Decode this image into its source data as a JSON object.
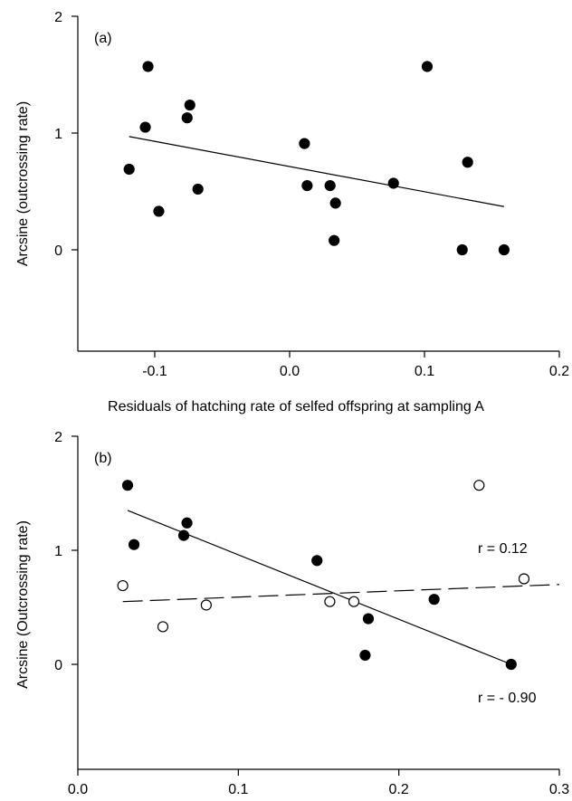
{
  "chart_data": [
    {
      "type": "scatter",
      "panel_label": "(a)",
      "xlabel": "Residuals of hatching rate of selfed offspring at sampling A",
      "ylabel": "Arcsine (outcrossing rate)",
      "xlim": [
        -0.15,
        0.2
      ],
      "ylim": [
        -0.9,
        2
      ],
      "xticks": [
        "-0.1",
        "0.0",
        "0.1",
        "0.2"
      ],
      "xtick_values": [
        -0.1,
        0.0,
        0.1,
        0.2
      ],
      "yticks": [
        "0",
        "1",
        "2"
      ],
      "ytick_values": [
        0,
        1,
        2
      ],
      "grid": false,
      "series": [
        {
          "marker": "filled",
          "points": [
            [
              -0.119,
              0.69
            ],
            [
              -0.105,
              1.57
            ],
            [
              -0.107,
              1.05
            ],
            [
              -0.097,
              0.33
            ],
            [
              -0.076,
              1.13
            ],
            [
              -0.074,
              1.24
            ],
            [
              -0.068,
              0.52
            ],
            [
              0.011,
              0.91
            ],
            [
              0.013,
              0.55
            ],
            [
              0.03,
              0.55
            ],
            [
              0.034,
              0.4
            ],
            [
              0.033,
              0.08
            ],
            [
              0.077,
              0.57
            ],
            [
              0.102,
              1.57
            ],
            [
              0.128,
              0.0
            ],
            [
              0.132,
              0.75
            ],
            [
              0.159,
              0.0
            ]
          ]
        }
      ],
      "fit_lines": [
        {
          "style": "solid",
          "x": [
            -0.119,
            0.159
          ],
          "y": [
            0.97,
            0.37
          ]
        }
      ]
    },
    {
      "type": "scatter",
      "panel_label": "(b)",
      "xlabel": "",
      "ylabel": "Arcsine (Outcrossing rate)",
      "xlim": [
        0.0,
        0.3
      ],
      "ylim": [
        -0.9,
        2
      ],
      "xticks": [
        "0.0",
        "0.1",
        "0.2",
        "0.3"
      ],
      "xtick_values": [
        0.0,
        0.1,
        0.2,
        0.3
      ],
      "yticks": [
        "0",
        "1",
        "2"
      ],
      "ytick_values": [
        0,
        1,
        2
      ],
      "grid": false,
      "series": [
        {
          "marker": "filled",
          "points": [
            [
              0.031,
              1.57
            ],
            [
              0.035,
              1.05
            ],
            [
              0.066,
              1.13
            ],
            [
              0.068,
              1.24
            ],
            [
              0.149,
              0.91
            ],
            [
              0.179,
              0.08
            ],
            [
              0.181,
              0.4
            ],
            [
              0.222,
              0.57
            ],
            [
              0.27,
              0.0
            ]
          ]
        },
        {
          "marker": "open",
          "points": [
            [
              0.028,
              0.69
            ],
            [
              0.053,
              0.33
            ],
            [
              0.08,
              0.52
            ],
            [
              0.157,
              0.55
            ],
            [
              0.172,
              0.55
            ],
            [
              0.25,
              1.57
            ],
            [
              0.278,
              0.75
            ]
          ]
        }
      ],
      "fit_lines": [
        {
          "style": "solid",
          "x": [
            0.031,
            0.27
          ],
          "y": [
            1.35,
            0.0
          ]
        },
        {
          "style": "dashed",
          "x": [
            0.028,
            0.3
          ],
          "y": [
            0.55,
            0.7
          ]
        }
      ],
      "annotations": [
        "r = 0.12",
        "r = - 0.90"
      ]
    }
  ]
}
